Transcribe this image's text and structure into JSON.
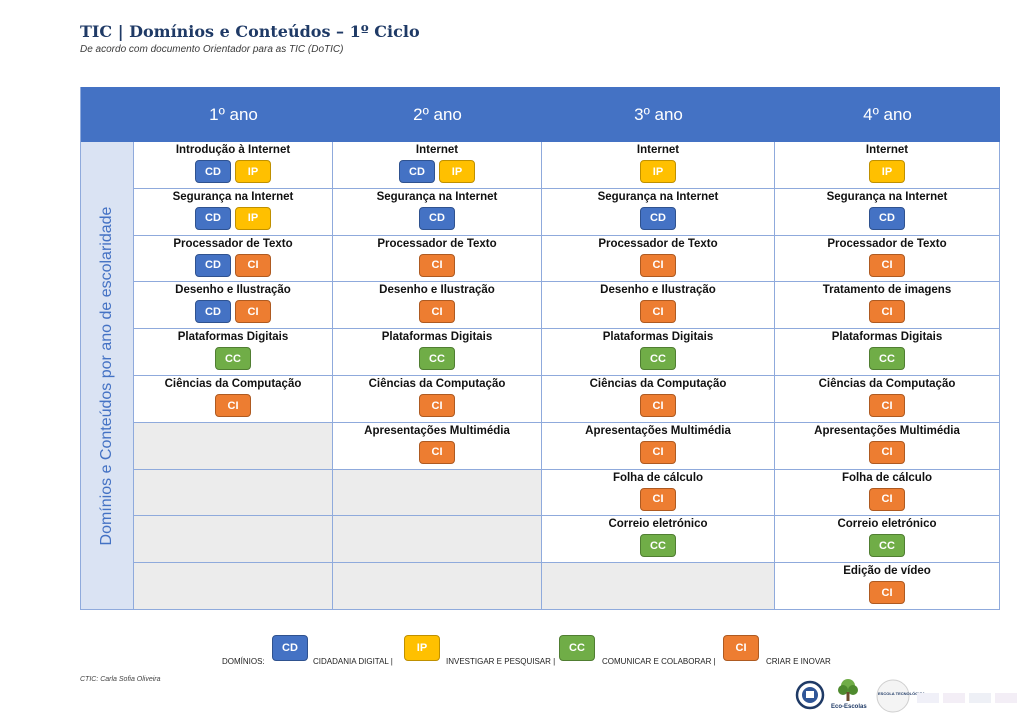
{
  "header": {
    "title": "TIC | Domínios e Conteúdos – 1º Ciclo",
    "subtitle": "De acordo com documento Orientador para as TIC (DoTIC)"
  },
  "table": {
    "side_label": "Domínios e Conteúdos por ano de escolaridade",
    "years": [
      "1º ano",
      "2º ano",
      "3º ano",
      "4º ano"
    ],
    "columns": [
      [
        {
          "title": "Introdução à Internet",
          "badges": [
            "CD",
            "IP"
          ]
        },
        {
          "title": "Segurança na Internet",
          "badges": [
            "CD",
            "IP"
          ]
        },
        {
          "title": "Processador de Texto",
          "badges": [
            "CD",
            "CI"
          ]
        },
        {
          "title": "Desenho e Ilustração",
          "badges": [
            "CD",
            "CI"
          ]
        },
        {
          "title": "Plataformas Digitais",
          "badges": [
            "CC"
          ]
        },
        {
          "title": "Ciências da Computação",
          "badges": [
            "CI"
          ]
        },
        null,
        null,
        null,
        null
      ],
      [
        {
          "title": "Internet",
          "badges": [
            "CD",
            "IP"
          ]
        },
        {
          "title": "Segurança na Internet",
          "badges": [
            "CD"
          ]
        },
        {
          "title": "Processador de Texto",
          "badges": [
            "CI"
          ]
        },
        {
          "title": "Desenho e Ilustração",
          "badges": [
            "CI"
          ]
        },
        {
          "title": "Plataformas Digitais",
          "badges": [
            "CC"
          ]
        },
        {
          "title": "Ciências da Computação",
          "badges": [
            "CI"
          ]
        },
        {
          "title": "Apresentações Multimédia",
          "badges": [
            "CI"
          ]
        },
        null,
        null,
        null
      ],
      [
        {
          "title": "Internet",
          "badges": [
            "IP"
          ]
        },
        {
          "title": "Segurança na Internet",
          "badges": [
            "CD"
          ]
        },
        {
          "title": "Processador de Texto",
          "badges": [
            "CI"
          ]
        },
        {
          "title": "Desenho e Ilustração",
          "badges": [
            "CI"
          ]
        },
        {
          "title": "Plataformas Digitais",
          "badges": [
            "CC"
          ]
        },
        {
          "title": "Ciências da Computação",
          "badges": [
            "CI"
          ]
        },
        {
          "title": "Apresentações Multimédia",
          "badges": [
            "CI"
          ]
        },
        {
          "title": "Folha de cálculo",
          "badges": [
            "CI"
          ]
        },
        {
          "title": "Correio eletrónico",
          "badges": [
            "CC"
          ]
        },
        null
      ],
      [
        {
          "title": "Internet",
          "badges": [
            "IP"
          ]
        },
        {
          "title": "Segurança na Internet",
          "badges": [
            "CD"
          ]
        },
        {
          "title": "Processador de Texto",
          "badges": [
            "CI"
          ]
        },
        {
          "title": "Tratamento de imagens",
          "badges": [
            "CI"
          ]
        },
        {
          "title": "Plataformas Digitais",
          "badges": [
            "CC"
          ]
        },
        {
          "title": "Ciências da Computação",
          "badges": [
            "CI"
          ]
        },
        {
          "title": "Apresentações Multimédia",
          "badges": [
            "CI"
          ]
        },
        {
          "title": "Folha de cálculo",
          "badges": [
            "CI"
          ]
        },
        {
          "title": "Correio eletrónico",
          "badges": [
            "CC"
          ]
        },
        {
          "title": "Edição de vídeo",
          "badges": [
            "CI"
          ]
        }
      ]
    ]
  },
  "legend": {
    "prefix": "DOMÍNIOS:",
    "items": [
      {
        "code": "CD",
        "label": "CIDADANIA DIGITAL |"
      },
      {
        "code": "IP",
        "label": "INVESTIGAR E PESQUISAR |"
      },
      {
        "code": "CC",
        "label": "COMUNICAR E COLABORAR |"
      },
      {
        "code": "CI",
        "label": "CRIAR E INOVAR"
      }
    ]
  },
  "badge_colors": {
    "CD": "#4472c4",
    "IP": "#ffc000",
    "CC": "#70ad47",
    "CI": "#ed7d31"
  },
  "footer": {
    "credit": "CTIC: Carla Sofia Oliveira",
    "logos": [
      {
        "name": "school-emblem-icon",
        "label": ""
      },
      {
        "name": "eco-escolas-icon",
        "label": "Eco-Escolas"
      },
      {
        "name": "escola-tecnologica-icon",
        "label": "ESCOLA TECNOLÓGICA"
      }
    ]
  }
}
